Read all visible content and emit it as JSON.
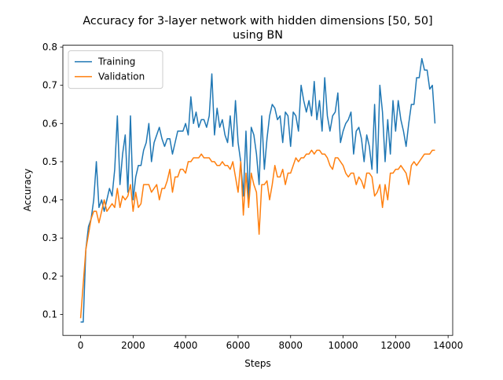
{
  "chart_data": {
    "type": "line",
    "title": [
      "Accuracy for 3-layer network with hidden dimensions [50, 50]",
      "using BN"
    ],
    "x_label": "Steps",
    "y_label": "Accuracy",
    "x": [
      0,
      100,
      200,
      300,
      400,
      500,
      600,
      700,
      800,
      900,
      1000,
      1100,
      1200,
      1300,
      1400,
      1500,
      1600,
      1700,
      1800,
      1900,
      2000,
      2100,
      2200,
      2300,
      2400,
      2500,
      2600,
      2700,
      2800,
      2900,
      3000,
      3100,
      3200,
      3300,
      3400,
      3500,
      3600,
      3700,
      3800,
      3900,
      4000,
      4100,
      4200,
      4300,
      4400,
      4500,
      4600,
      4700,
      4800,
      4900,
      5000,
      5100,
      5200,
      5300,
      5400,
      5500,
      5600,
      5700,
      5800,
      5900,
      6000,
      6100,
      6200,
      6300,
      6400,
      6500,
      6600,
      6700,
      6800,
      6900,
      7000,
      7100,
      7200,
      7300,
      7400,
      7500,
      7600,
      7700,
      7800,
      7900,
      8000,
      8100,
      8200,
      8300,
      8400,
      8500,
      8600,
      8700,
      8800,
      8900,
      9000,
      9100,
      9200,
      9300,
      9400,
      9500,
      9600,
      9700,
      9800,
      9900,
      10000,
      10100,
      10200,
      10300,
      10400,
      10500,
      10600,
      10700,
      10800,
      10900,
      11000,
      11100,
      11200,
      11300,
      11400,
      11500,
      11600,
      11700,
      11800,
      11900,
      12000,
      12100,
      12200,
      12300,
      12400,
      12500,
      12600,
      12700,
      12800,
      12900,
      13000,
      13100,
      13200,
      13300,
      13400,
      13500
    ],
    "series": [
      {
        "name": "Training",
        "color": "#1f77b4",
        "values": [
          0.08,
          0.08,
          0.27,
          0.33,
          0.35,
          0.4,
          0.5,
          0.38,
          0.4,
          0.37,
          0.4,
          0.43,
          0.41,
          0.48,
          0.62,
          0.44,
          0.52,
          0.57,
          0.42,
          0.62,
          0.4,
          0.46,
          0.49,
          0.49,
          0.53,
          0.55,
          0.6,
          0.5,
          0.55,
          0.57,
          0.59,
          0.56,
          0.54,
          0.56,
          0.56,
          0.52,
          0.55,
          0.58,
          0.58,
          0.58,
          0.6,
          0.57,
          0.67,
          0.6,
          0.63,
          0.59,
          0.61,
          0.61,
          0.59,
          0.62,
          0.73,
          0.57,
          0.64,
          0.59,
          0.61,
          0.57,
          0.55,
          0.62,
          0.54,
          0.66,
          0.55,
          0.5,
          0.41,
          0.58,
          0.4,
          0.59,
          0.57,
          0.52,
          0.44,
          0.62,
          0.48,
          0.56,
          0.62,
          0.65,
          0.64,
          0.61,
          0.62,
          0.55,
          0.63,
          0.62,
          0.54,
          0.63,
          0.62,
          0.58,
          0.7,
          0.66,
          0.63,
          0.66,
          0.62,
          0.71,
          0.61,
          0.66,
          0.58,
          0.72,
          0.62,
          0.58,
          0.62,
          0.63,
          0.68,
          0.55,
          0.58,
          0.6,
          0.61,
          0.63,
          0.52,
          0.58,
          0.59,
          0.56,
          0.5,
          0.57,
          0.54,
          0.48,
          0.65,
          0.47,
          0.7,
          0.63,
          0.5,
          0.61,
          0.52,
          0.66,
          0.58,
          0.66,
          0.61,
          0.58,
          0.54,
          0.6,
          0.65,
          0.65,
          0.72,
          0.72,
          0.77,
          0.74,
          0.74,
          0.69,
          0.7,
          0.6
        ]
      },
      {
        "name": "Validation",
        "color": "#ff7f0e",
        "values": [
          0.09,
          0.18,
          0.27,
          0.31,
          0.35,
          0.37,
          0.37,
          0.34,
          0.37,
          0.4,
          0.37,
          0.38,
          0.39,
          0.38,
          0.43,
          0.38,
          0.41,
          0.4,
          0.41,
          0.44,
          0.37,
          0.42,
          0.38,
          0.39,
          0.44,
          0.44,
          0.44,
          0.42,
          0.43,
          0.44,
          0.4,
          0.43,
          0.43,
          0.45,
          0.48,
          0.42,
          0.46,
          0.46,
          0.48,
          0.48,
          0.47,
          0.5,
          0.5,
          0.51,
          0.51,
          0.51,
          0.52,
          0.51,
          0.51,
          0.51,
          0.5,
          0.5,
          0.49,
          0.49,
          0.5,
          0.49,
          0.49,
          0.48,
          0.5,
          0.46,
          0.42,
          0.5,
          0.36,
          0.47,
          0.38,
          0.47,
          0.44,
          0.42,
          0.31,
          0.44,
          0.44,
          0.45,
          0.4,
          0.44,
          0.49,
          0.46,
          0.46,
          0.48,
          0.44,
          0.47,
          0.47,
          0.49,
          0.51,
          0.5,
          0.51,
          0.51,
          0.52,
          0.52,
          0.53,
          0.52,
          0.53,
          0.53,
          0.52,
          0.52,
          0.51,
          0.49,
          0.48,
          0.51,
          0.51,
          0.5,
          0.49,
          0.47,
          0.46,
          0.47,
          0.47,
          0.44,
          0.46,
          0.45,
          0.43,
          0.47,
          0.47,
          0.46,
          0.41,
          0.42,
          0.44,
          0.38,
          0.44,
          0.4,
          0.47,
          0.47,
          0.48,
          0.48,
          0.49,
          0.48,
          0.47,
          0.44,
          0.49,
          0.5,
          0.49,
          0.5,
          0.51,
          0.52,
          0.52,
          0.52,
          0.53,
          0.53
        ]
      }
    ],
    "xlim": [
      -675,
      14175
    ],
    "ylim": [
      0.045,
      0.805
    ],
    "xticks": [
      0,
      2000,
      4000,
      6000,
      8000,
      10000,
      12000,
      14000
    ],
    "yticks": [
      0.1,
      0.2,
      0.3,
      0.4,
      0.5,
      0.6,
      0.7,
      0.8
    ],
    "legend": "upper left"
  }
}
